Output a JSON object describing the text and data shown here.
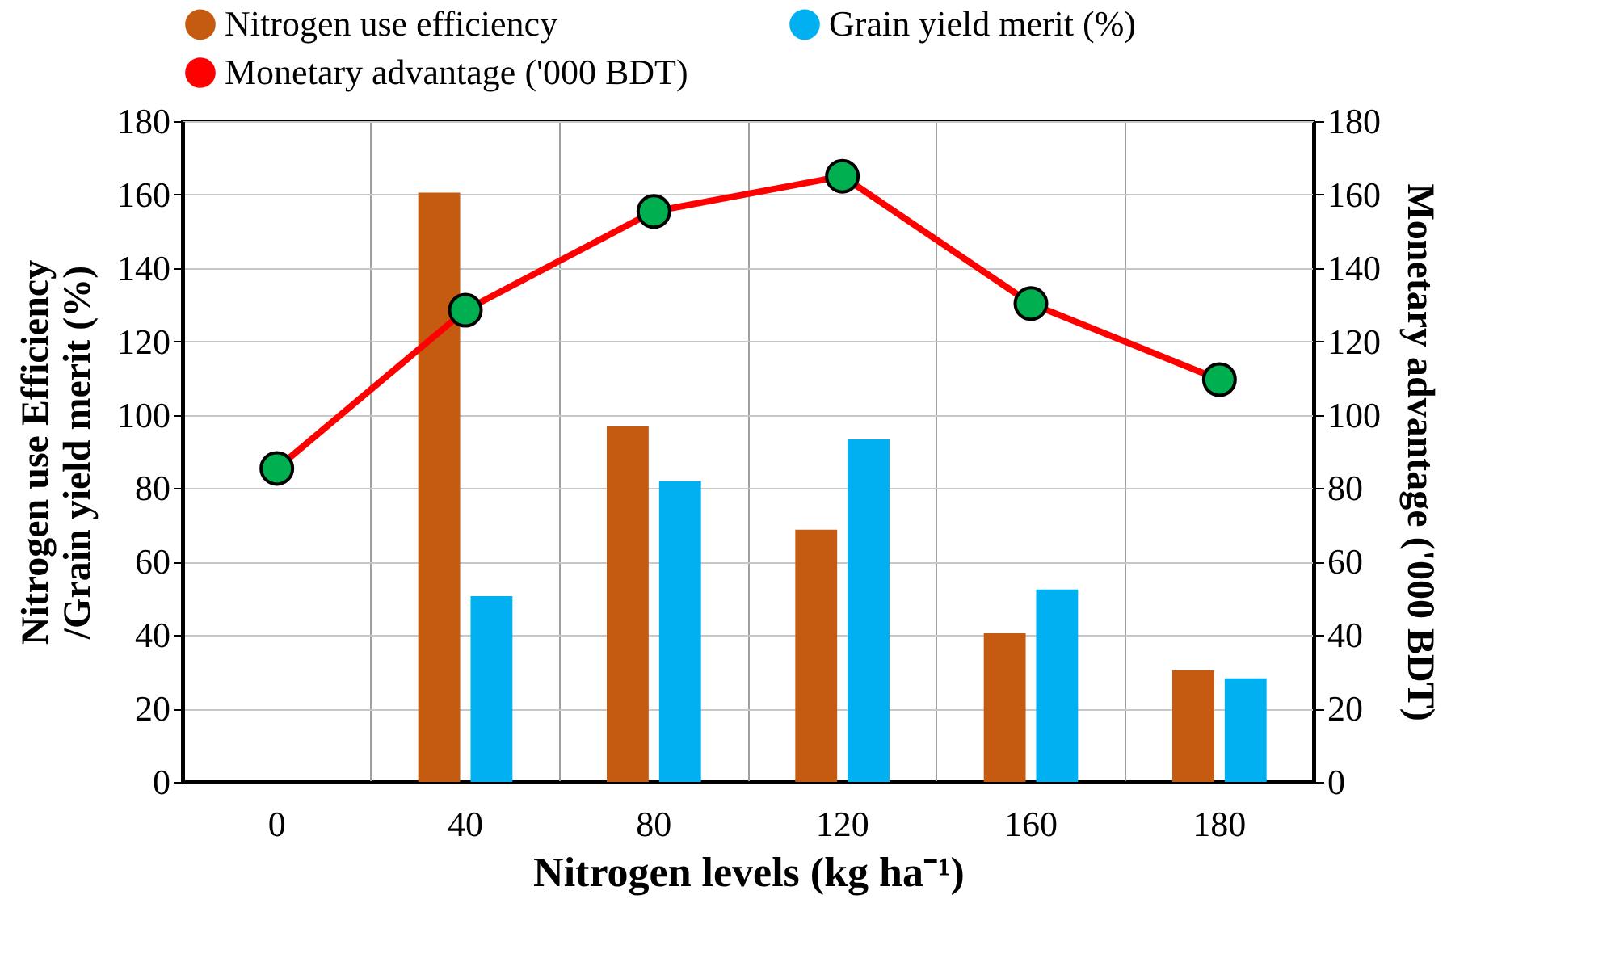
{
  "chart_data": {
    "type": "bar",
    "xlabel": "Nitrogen levels (kg ha⁻¹)",
    "ylabel": "Nitrogen use Efficiency\n/Grain yield merit (%)",
    "y2label": "Monetary advantage ('000 BDT)",
    "categories": [
      "0",
      "40",
      "80",
      "120",
      "160",
      "180"
    ],
    "series": [
      {
        "name": "Nitrogen use efficiency",
        "color": "#c55a11",
        "values": [
          null,
          160.5,
          96.8,
          68.7,
          40.5,
          30.4
        ]
      },
      {
        "name": "Grain yield merit (%)",
        "color": "#00b0f0",
        "values": [
          null,
          50.6,
          81.9,
          93.3,
          52.4,
          28.2
        ]
      },
      {
        "name": "Monetary advantage ('000 BDT)",
        "type": "line",
        "axis": "y2",
        "color": "#ff0000",
        "marker": "circle",
        "values": [
          85.4,
          128.5,
          155.4,
          165,
          130.3,
          109.6
        ]
      }
    ],
    "ylim": [
      0,
      180
    ],
    "yticks": [
      0,
      20,
      40,
      60,
      80,
      100,
      120,
      140,
      160,
      180
    ],
    "y2lim": [
      0,
      180
    ],
    "y2ticks": [
      0,
      20,
      40,
      60,
      80,
      100,
      120,
      140,
      160,
      180
    ],
    "grid": true,
    "legend": "top"
  }
}
